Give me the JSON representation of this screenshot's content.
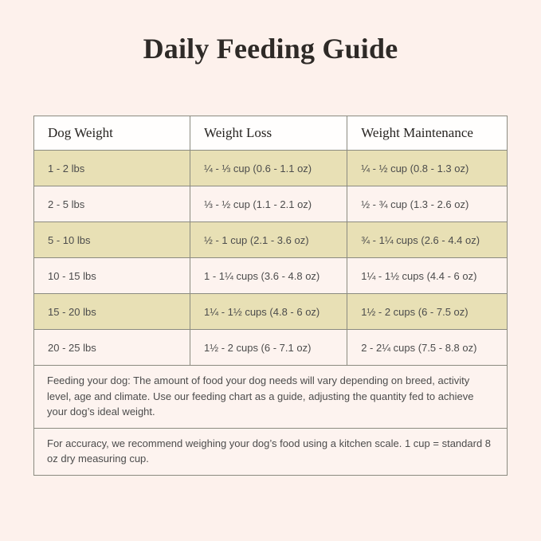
{
  "page": {
    "title": "Daily Feeding Guide"
  },
  "colors": {
    "page_background": "#fdf1ec",
    "header_row_background": "#fffefd",
    "highlight_row_background": "#e8e0b5",
    "plain_row_background": "#fdf3ef",
    "table_border": "#8b8b80",
    "title_text": "#2e2a27",
    "cell_text": "#4c4c4c"
  },
  "table": {
    "headers": [
      "Dog Weight",
      "Weight Loss",
      "Weight Maintenance"
    ],
    "rows": [
      [
        "1 - 2 lbs",
        "¼ - ⅓ cup (0.6 - 1.1 oz)",
        "¼ - ½ cup (0.8 - 1.3 oz)"
      ],
      [
        "2 - 5 lbs",
        "⅓ - ½ cup (1.1 - 2.1 oz)",
        "½ - ¾ cup (1.3 - 2.6 oz)"
      ],
      [
        "5 - 10 lbs",
        "½ - 1 cup (2.1 - 3.6 oz)",
        "¾ - 1¼ cups (2.6 - 4.4 oz)"
      ],
      [
        "10 - 15 lbs",
        "1 - 1¼ cups (3.6 - 4.8 oz)",
        "1¼ - 1½ cups (4.4 - 6 oz)"
      ],
      [
        "15 - 20 lbs",
        "1¼ - 1½ cups (4.8 - 6 oz)",
        "1½ - 2 cups (6 - 7.5 oz)"
      ],
      [
        "20 - 25 lbs",
        "1½ - 2 cups (6 - 7.1 oz)",
        "2 - 2¼ cups (7.5 - 8.8 oz)"
      ]
    ],
    "notes": [
      "Feeding your dog: The amount of food your dog needs will vary depending on breed, activity level, age and climate. Use our feeding chart as a guide, adjusting the quantity fed to achieve your dog’s ideal weight.",
      "For accuracy, we recommend weighing your dog’s food using a kitchen scale. 1 cup = standard 8 oz dry measuring cup."
    ]
  }
}
